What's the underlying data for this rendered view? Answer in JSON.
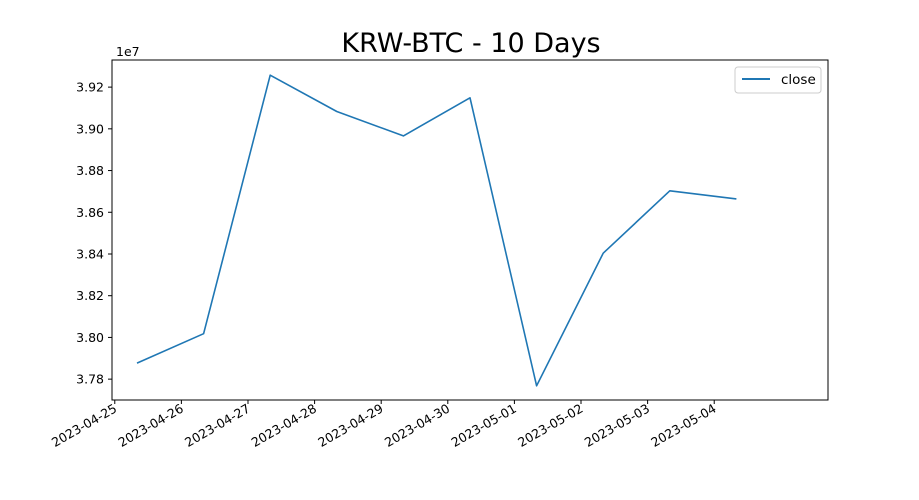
{
  "chart_data": {
    "type": "line",
    "title": "KRW-BTC - 10 Days",
    "xlabel": "",
    "ylabel": "",
    "y_scale_label": "1e7",
    "x": [
      "2023-04-25 08:00",
      "2023-04-26 08:00",
      "2023-04-27 08:00",
      "2023-04-28 08:00",
      "2023-04-29 08:00",
      "2023-04-30 08:00",
      "2023-05-01 08:00",
      "2023-05-02 08:00",
      "2023-05-03 08:00",
      "2023-05-04 08:00"
    ],
    "series": [
      {
        "name": "close",
        "color": "#1f77b4",
        "values": [
          37877000,
          38018000,
          39257000,
          39083000,
          38966000,
          39149000,
          37768000,
          38404000,
          38703000,
          38664000
        ]
      }
    ],
    "x_ticks": [
      "2023-04-25",
      "2023-04-26",
      "2023-04-27",
      "2023-04-28",
      "2023-04-29",
      "2023-04-30",
      "2023-05-01",
      "2023-05-02",
      "2023-05-03",
      "2023-05-04"
    ],
    "y_ticks": [
      "3.78",
      "3.80",
      "3.82",
      "3.84",
      "3.86",
      "3.88",
      "3.90",
      "3.92"
    ],
    "y_tick_values": [
      37800000,
      38000000,
      38200000,
      38400000,
      38600000,
      38800000,
      39000000,
      39200000
    ],
    "xlim": [
      "2023-04-24 23:00",
      "2023-05-05 17:00"
    ],
    "ylim": [
      37700000,
      39330000
    ],
    "grid": false,
    "legend_position": "top-right"
  }
}
